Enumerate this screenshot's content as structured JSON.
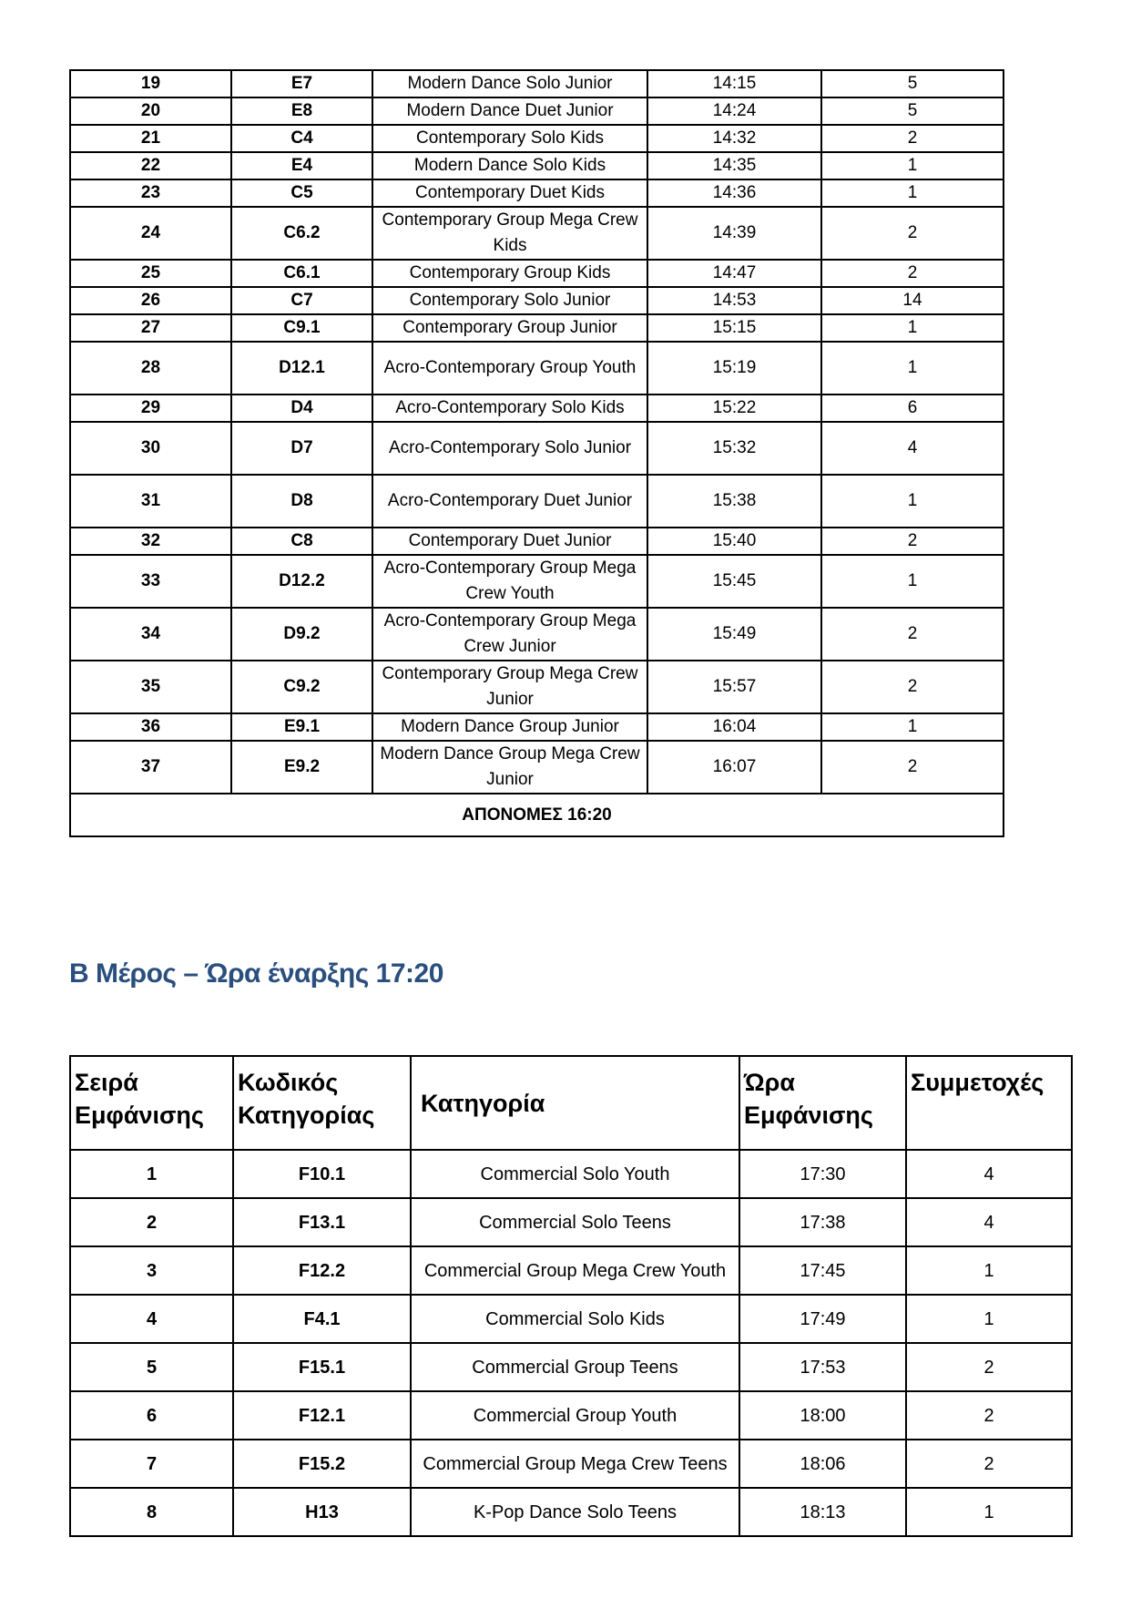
{
  "table1": {
    "rows": [
      {
        "order": "19",
        "code": "E7",
        "category": "Modern Dance Solo Junior",
        "time": "14:15",
        "entries": "5"
      },
      {
        "order": "20",
        "code": "E8",
        "category": "Modern Dance Duet Junior",
        "time": "14:24",
        "entries": "5"
      },
      {
        "order": "21",
        "code": "C4",
        "category": "Contemporary Solo Kids",
        "time": "14:32",
        "entries": "2"
      },
      {
        "order": "22",
        "code": "E4",
        "category": "Modern Dance Solo Kids",
        "time": "14:35",
        "entries": "1"
      },
      {
        "order": "23",
        "code": "C5",
        "category": "Contemporary Duet Kids",
        "time": "14:36",
        "entries": "1"
      },
      {
        "order": "24",
        "code": "C6.2",
        "category": "Contemporary Group Mega Crew Kids",
        "time": "14:39",
        "entries": "2"
      },
      {
        "order": "25",
        "code": "C6.1",
        "category": "Contemporary Group Kids",
        "time": "14:47",
        "entries": "2"
      },
      {
        "order": "26",
        "code": "C7",
        "category": "Contemporary Solo Junior",
        "time": "14:53",
        "entries": "14"
      },
      {
        "order": "27",
        "code": "C9.1",
        "category": "Contemporary Group Junior",
        "time": "15:15",
        "entries": "1"
      },
      {
        "order": "28",
        "code": "D12.1",
        "category": "Acro-Contemporary Group Youth",
        "time": "15:19",
        "entries": "1"
      },
      {
        "order": "29",
        "code": "D4",
        "category": "Acro-Contemporary Solo Kids",
        "time": "15:22",
        "entries": "6"
      },
      {
        "order": "30",
        "code": "D7",
        "category": "Acro-Contemporary Solo Junior",
        "time": "15:32",
        "entries": "4"
      },
      {
        "order": "31",
        "code": "D8",
        "category": "Acro-Contemporary Duet Junior",
        "time": "15:38",
        "entries": "1"
      },
      {
        "order": "32",
        "code": "C8",
        "category": "Contemporary Duet Junior",
        "time": "15:40",
        "entries": "2"
      },
      {
        "order": "33",
        "code": "D12.2",
        "category": "Acro-Contemporary Group Mega Crew Youth",
        "time": "15:45",
        "entries": "1"
      },
      {
        "order": "34",
        "code": "D9.2",
        "category": "Acro-Contemporary Group Mega Crew Junior",
        "time": "15:49",
        "entries": "2"
      },
      {
        "order": "35",
        "code": "C9.2",
        "category": "Contemporary Group Mega Crew Junior",
        "time": "15:57",
        "entries": "2"
      },
      {
        "order": "36",
        "code": "E9.1",
        "category": "Modern Dance Group Junior",
        "time": "16:04",
        "entries": "1"
      },
      {
        "order": "37",
        "code": "E9.2",
        "category": "Modern Dance Group Mega Crew Junior",
        "time": "16:07",
        "entries": "2"
      }
    ],
    "footer": "ΑΠΟΝΟΜΕΣ 16:20"
  },
  "section_b": {
    "heading": "B Μέρος – Ώρα έναρξης 17:20"
  },
  "table2": {
    "headers": [
      "Σειρά Εμφάνισης",
      "Κωδικός Κατηγορίας",
      "Κατηγορία",
      "Ώρα Εμφάνισης",
      "Συμμετοχές"
    ],
    "rows": [
      {
        "order": "1",
        "code": "F10.1",
        "category": "Commercial Solo Youth",
        "time": "17:30",
        "entries": "4"
      },
      {
        "order": "2",
        "code": "F13.1",
        "category": "Commercial Solo Teens",
        "time": "17:38",
        "entries": "4"
      },
      {
        "order": "3",
        "code": "F12.2",
        "category": "Commercial Group Mega Crew Youth",
        "time": "17:45",
        "entries": "1"
      },
      {
        "order": "4",
        "code": "F4.1",
        "category": "Commercial Solo Kids",
        "time": "17:49",
        "entries": "1"
      },
      {
        "order": "5",
        "code": "F15.1",
        "category": "Commercial Group Teens",
        "time": "17:53",
        "entries": "2"
      },
      {
        "order": "6",
        "code": "F12.1",
        "category": "Commercial Group Youth",
        "time": "18:00",
        "entries": "2"
      },
      {
        "order": "7",
        "code": "F15.2",
        "category": "Commercial Group Mega Crew Teens",
        "time": "18:06",
        "entries": "2"
      },
      {
        "order": "8",
        "code": "H13",
        "category": "K-Pop Dance Solo Teens",
        "time": "18:13",
        "entries": "1"
      }
    ]
  },
  "colors": {
    "heading": "#2a4f7e",
    "border": "#000000"
  }
}
